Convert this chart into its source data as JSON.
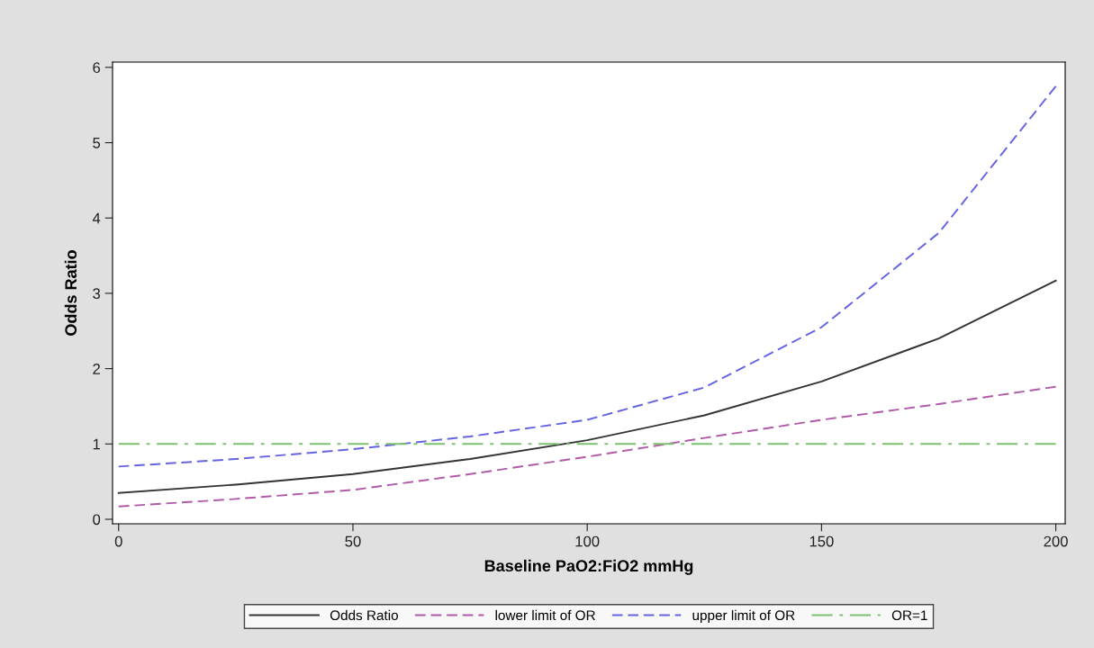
{
  "chart_data": {
    "type": "line",
    "xlabel": "Baseline PaO2:FiO2 mmHg",
    "ylabel": "Odds Ratio",
    "x": [
      0,
      25,
      50,
      75,
      100,
      125,
      150,
      175,
      200
    ],
    "series": [
      {
        "name": "Odds Ratio",
        "color": "#333333",
        "line_style": "solid",
        "values": [
          0.35,
          0.46,
          0.6,
          0.8,
          1.05,
          1.38,
          1.83,
          2.4,
          3.17
        ]
      },
      {
        "name": "lower limit of OR",
        "color": "#b05aa8",
        "line_style": "dashed",
        "values": [
          0.17,
          0.27,
          0.39,
          0.6,
          0.83,
          1.08,
          1.32,
          1.53,
          1.76
        ]
      },
      {
        "name": "upper limit of OR",
        "color": "#6464e0",
        "line_style": "dashed",
        "values": [
          0.7,
          0.8,
          0.93,
          1.1,
          1.32,
          1.75,
          2.55,
          3.8,
          5.75
        ]
      },
      {
        "name": "OR=1",
        "color": "#7cc070",
        "line_style": "dashdot",
        "values": [
          1,
          1,
          1,
          1,
          1,
          1,
          1,
          1,
          1
        ]
      }
    ],
    "xlim": [
      -1.3,
      202
    ],
    "ylim": [
      -0.06,
      6.07
    ],
    "xticks": [
      0,
      50,
      100,
      150,
      200
    ],
    "yticks": [
      0,
      1,
      2,
      3,
      4,
      5,
      6
    ],
    "grid": false,
    "legend": "bottom",
    "marker": "none"
  }
}
